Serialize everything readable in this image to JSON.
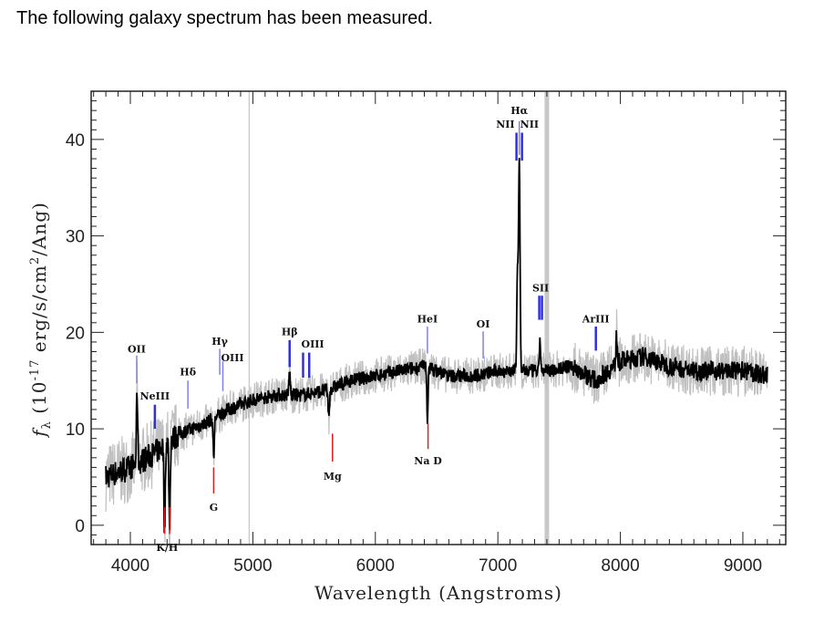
{
  "intro_text": "The following galaxy spectrum has been measured.",
  "chart_data": {
    "type": "line",
    "title": "",
    "xlabel": "Wavelength (Angstroms)",
    "ylabel_parts": {
      "f": "f",
      "sub": "λ",
      "pre": " (10",
      "exp": "-17",
      "mid": " erg/s/cm",
      "exp2": "2",
      "post": "/Ang)"
    },
    "xlim": [
      3680,
      9350
    ],
    "ylim": [
      -2,
      45
    ],
    "x_ticks": [
      4000,
      5000,
      6000,
      7000,
      8000,
      9000
    ],
    "y_ticks": [
      0,
      10,
      20,
      30,
      40
    ],
    "grid": false,
    "colors": {
      "spectrum": "#000000",
      "error": "#c0c0c0",
      "emission": "#3030e0",
      "emission_light": "#8080f0",
      "absorption": "#e02020",
      "sky": "#c8c8c8"
    },
    "continuum": [
      [
        3800,
        5
      ],
      [
        4000,
        6
      ],
      [
        4200,
        7.5
      ],
      [
        4400,
        9.5
      ],
      [
        4600,
        10.5
      ],
      [
        4800,
        12
      ],
      [
        5000,
        13
      ],
      [
        5200,
        13.5
      ],
      [
        5400,
        13.5
      ],
      [
        5600,
        14
      ],
      [
        5800,
        15
      ],
      [
        6000,
        15.5
      ],
      [
        6200,
        16
      ],
      [
        6400,
        16.5
      ],
      [
        6600,
        15.5
      ],
      [
        6800,
        15.5
      ],
      [
        7000,
        16
      ],
      [
        7200,
        16
      ],
      [
        7400,
        16
      ],
      [
        7600,
        16.5
      ],
      [
        7800,
        15
      ],
      [
        8000,
        17
      ],
      [
        8200,
        17.5
      ],
      [
        8400,
        16.5
      ],
      [
        8600,
        16
      ],
      [
        8800,
        16
      ],
      [
        9000,
        16
      ],
      [
        9200,
        15.5
      ]
    ],
    "features": [
      {
        "wavelength": 4055,
        "peak": 14
      },
      {
        "wavelength": 4280,
        "peak": -1
      },
      {
        "wavelength": 4320,
        "peak": -0.5
      },
      {
        "wavelength": 4680,
        "peak": 7
      },
      {
        "wavelength": 5300,
        "peak": 16
      },
      {
        "wavelength": 5620,
        "peak": 11
      },
      {
        "wavelength": 6425,
        "peak": 11
      },
      {
        "wavelength": 7160,
        "peak": 26
      },
      {
        "wavelength": 7175,
        "peak": 37.5
      },
      {
        "wavelength": 7345,
        "peak": 19
      },
      {
        "wavelength": 7970,
        "peak": 20
      }
    ],
    "sky_lines": [
      {
        "wavelength": 4970,
        "width": "thin"
      },
      {
        "wavelength": 7400,
        "width": "thick"
      }
    ],
    "line_markers": [
      {
        "label": "OII",
        "wavelengths": [
          4052
        ],
        "y": [
          14.7,
          17.6
        ],
        "label_y": 18.3,
        "kind": "emission_light"
      },
      {
        "label": "NeIII",
        "wavelengths": [
          4200
        ],
        "y": [
          10,
          12.5
        ],
        "label_y": 13.4,
        "kind": "emission"
      },
      {
        "label": "Hδ",
        "wavelengths": [
          4470
        ],
        "y": [
          12.1,
          15
        ],
        "label_y": 15.9,
        "kind": "emission_light"
      },
      {
        "label": "Hγ",
        "wavelengths": [
          4730
        ],
        "y": [
          15.6,
          18.3
        ],
        "label_y": 19.1,
        "kind": "emission_light"
      },
      {
        "label": "OIII",
        "wavelengths": [
          4755
        ],
        "y": [
          13.9,
          17
        ],
        "label_y": 17.4,
        "kind": "emission_light",
        "anchor": "start"
      },
      {
        "label": "Hβ",
        "wavelengths": [
          5300
        ],
        "y": [
          16.4,
          19.2
        ],
        "label_y": 20.1,
        "kind": "emission"
      },
      {
        "label": "OIII",
        "wavelengths": [
          5410,
          5460
        ],
        "y": [
          15.3,
          17.9
        ],
        "label_y": 18.8,
        "kind": "emission",
        "anchor": "start"
      },
      {
        "label": "Mg",
        "wavelengths": [
          5650
        ],
        "y": [
          6.6,
          9.5
        ],
        "label_y": 5.1,
        "kind": "absorption"
      },
      {
        "label": "G",
        "wavelengths": [
          4680
        ],
        "y": [
          3.3,
          6
        ],
        "label_y": 1.9,
        "kind": "absorption"
      },
      {
        "label": "K/H",
        "wavelengths": [
          4280,
          4320
        ],
        "y": [
          -0.9,
          1.9
        ],
        "label_y": -2.3,
        "kind": "absorption"
      },
      {
        "label": "Na D",
        "wavelengths": [
          6430
        ],
        "y": [
          7.9,
          10.7
        ],
        "label_y": 6.7,
        "kind": "absorption"
      },
      {
        "label": "HeI",
        "wavelengths": [
          6425
        ],
        "y": [
          17.8,
          20.6
        ],
        "label_y": 21.4,
        "kind": "emission_light"
      },
      {
        "label": "OI",
        "wavelengths": [
          6880
        ],
        "y": [
          17.3,
          20.1
        ],
        "label_y": 20.9,
        "kind": "emission_light"
      },
      {
        "label": "Hα",
        "wavelengths": [
          7175
        ],
        "y": [
          38.4,
          41.9
        ],
        "label_y": 43.0,
        "kind": "emission_light"
      },
      {
        "label": "NII",
        "wavelengths": [
          7152
        ],
        "y": [
          37.8,
          40.7
        ],
        "label_y": 41.6,
        "kind": "emission",
        "anchor": "end"
      },
      {
        "label": "NII",
        "wavelengths": [
          7197
        ],
        "y": [
          37.8,
          40.7
        ],
        "label_y": 41.6,
        "kind": "emission",
        "anchor": "start"
      },
      {
        "label": "SII",
        "wavelengths": [
          7338,
          7360
        ],
        "y": [
          21.3,
          23.8
        ],
        "label_y": 24.6,
        "kind": "emission"
      },
      {
        "label": "ArIII",
        "wavelengths": [
          7800
        ],
        "y": [
          18.1,
          20.6
        ],
        "label_y": 21.4,
        "kind": "emission"
      }
    ]
  }
}
